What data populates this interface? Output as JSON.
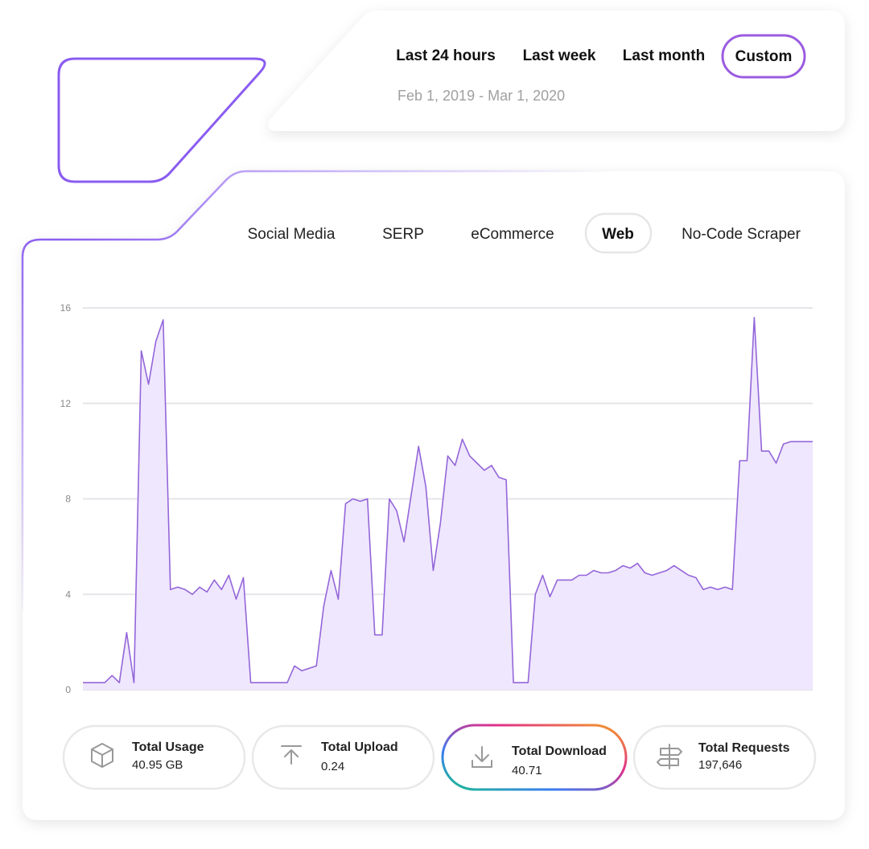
{
  "time_filters": [
    "Last 24 hours",
    "Last week",
    "Last month",
    "Custom"
  ],
  "date_range": "Feb 1, 2019 - Mar 1, 2020",
  "category_tabs": [
    "Social Media",
    "SERP",
    "eCommerce",
    "Web",
    "No-Code Scraper"
  ],
  "chart_data": {
    "type": "area",
    "color": "#9466d9",
    "fill": "#efe7fd",
    "grid": true,
    "ylim": [
      0,
      16
    ],
    "yticks": [
      0,
      4,
      8,
      12,
      16
    ],
    "values": [
      0.3,
      0.3,
      0.3,
      0.3,
      0.6,
      0.3,
      2.4,
      0.3,
      14.2,
      12.8,
      14.6,
      15.5,
      4.2,
      4.3,
      4.2,
      4.0,
      4.3,
      4.1,
      4.6,
      4.2,
      4.8,
      3.8,
      4.7,
      0.3,
      0.3,
      0.3,
      0.3,
      0.3,
      0.3,
      1.0,
      0.8,
      0.9,
      1.0,
      3.5,
      5.0,
      3.8,
      7.8,
      8.0,
      7.9,
      8.0,
      2.3,
      2.3,
      8.0,
      7.5,
      6.2,
      8.2,
      10.2,
      8.5,
      5.0,
      7.0,
      9.8,
      9.4,
      10.5,
      9.8,
      9.5,
      9.2,
      9.4,
      8.9,
      8.8,
      0.3,
      0.3,
      0.3,
      4.0,
      4.8,
      3.9,
      4.6,
      4.6,
      4.6,
      4.8,
      4.8,
      5.0,
      4.9,
      4.9,
      5.0,
      5.2,
      5.1,
      5.3,
      4.9,
      4.8,
      4.9,
      5.0,
      5.2,
      5.0,
      4.8,
      4.7,
      4.2,
      4.3,
      4.2,
      4.3,
      4.2,
      9.6,
      9.6,
      15.6,
      10.0,
      10.0,
      9.5,
      10.3,
      10.4,
      10.4,
      10.4,
      10.4
    ]
  },
  "stats": [
    {
      "label": "Total Usage",
      "value": "40.95 GB"
    },
    {
      "label": "Total Upload",
      "value": "0.24"
    },
    {
      "label": "Total Download",
      "value": "40.71"
    },
    {
      "label": "Total Requests",
      "value": "197,646"
    }
  ]
}
